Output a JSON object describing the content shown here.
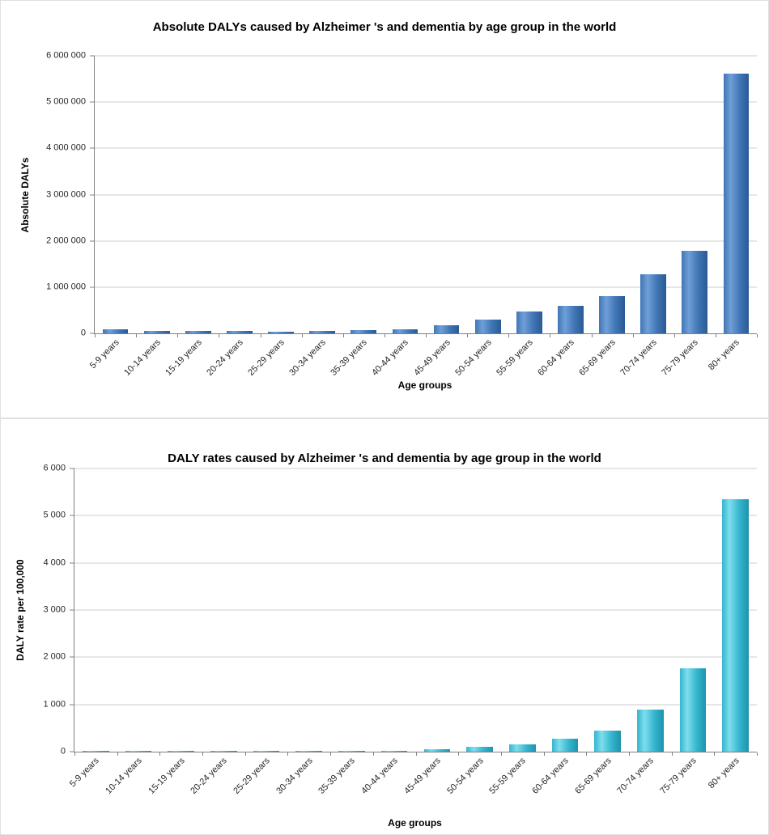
{
  "page": {
    "background": "#ffffff"
  },
  "chart_data": [
    {
      "type": "bar",
      "title": "Absolute DALYs caused by Alzheimer 's and dementia by age group in the world",
      "xlabel": "Age groups",
      "ylabel": "Absolute DALYs",
      "ylim": [
        0,
        6000000
      ],
      "yticks": [
        "0",
        "1 000 000",
        "2 000 000",
        "3 000 000",
        "4 000 000",
        "5 000 000",
        "6 000 000"
      ],
      "grid": true,
      "legend": "none",
      "categories": [
        "5-9 years",
        "10-14 years",
        "15-19 years",
        "20-24 years",
        "25-29 years",
        "30-34 years",
        "35-39 years",
        "40-44 years",
        "45-49 years",
        "50-54 years",
        "55-59 years",
        "60-64 years",
        "65-69 years",
        "70-74 years",
        "75-79 years",
        "80+ years"
      ],
      "values": [
        80000,
        60000,
        55000,
        55000,
        35000,
        50000,
        65000,
        90000,
        180000,
        300000,
        470000,
        600000,
        800000,
        1270000,
        1780000,
        5620000
      ],
      "bar_color": "#4075b4",
      "bar_color_light": "#6f9fd8",
      "bar_color_dark": "#2a5a94"
    },
    {
      "type": "bar",
      "title": "DALY rates caused by Alzheimer 's and dementia by age group in the world",
      "xlabel": "Age groups",
      "ylabel": "DALY rate per 100,000",
      "ylim": [
        0,
        6000
      ],
      "yticks": [
        "0",
        "1 000",
        "2 000",
        "3 000",
        "4 000",
        "5 000",
        "6 000"
      ],
      "grid": true,
      "legend": "none",
      "categories": [
        "5-9 years",
        "10-14 years",
        "15-19 years",
        "20-24 years",
        "25-29 years",
        "30-34 years",
        "35-39 years",
        "40-44 years",
        "45-49 years",
        "50-54 years",
        "55-59 years",
        "60-64 years",
        "65-69 years",
        "70-74 years",
        "75-79 years",
        "80+ years"
      ],
      "values": [
        15,
        12,
        10,
        10,
        8,
        8,
        10,
        20,
        50,
        100,
        160,
        270,
        450,
        890,
        1760,
        5350
      ],
      "bar_color": "#35b5ce",
      "bar_color_light": "#7ddeed",
      "bar_color_dark": "#1e93ad"
    }
  ]
}
